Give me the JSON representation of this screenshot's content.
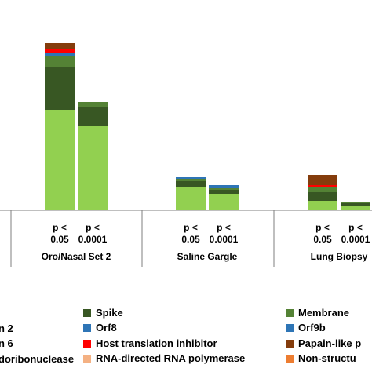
{
  "chart_data": {
    "type": "bar",
    "stacked": true,
    "groups": [
      {
        "label": "Oro/Nasal Set 2",
        "bars": [
          {
            "tick": [
              "p <",
              "0.05"
            ],
            "segments": {
              "base": 128,
              "Spike": 55,
              "Membrane": 14,
              "Orf8": 3,
              "Host translation inhibitor": 5,
              "Papain-like protease": 8
            }
          },
          {
            "tick": [
              "p <",
              "0.0001"
            ],
            "segments": {
              "base": 108,
              "Spike": 24,
              "Membrane": 6
            }
          }
        ]
      },
      {
        "label": "Saline Gargle",
        "bars": [
          {
            "tick": [
              "p <",
              "0.05"
            ],
            "segments": {
              "base": 30,
              "Spike": 8,
              "Membrane": 2,
              "Orf8": 3
            }
          },
          {
            "tick": [
              "p <",
              "0.0001"
            ],
            "segments": {
              "base": 21,
              "Spike": 5,
              "Membrane": 3,
              "Orf8": 3
            }
          }
        ]
      },
      {
        "label": "Lung Biopsy",
        "bars": [
          {
            "tick": [
              "p <",
              "0.05"
            ],
            "segments": {
              "base": 12,
              "Spike": 11,
              "Membrane": 7,
              "Host translation inhibitor": 2,
              "Papain-like protease": 13
            }
          },
          {
            "tick": [
              "p <",
              "0.0001"
            ],
            "segments": {
              "base": 6,
              "Spike": 3,
              "Membrane": 2
            }
          }
        ]
      }
    ],
    "colors": {
      "base": "#92d050",
      "Spike": "#385723",
      "Membrane": "#548235",
      "Orf8": "#2e75b6",
      "Orf9b": "#2e75b6",
      "Host translation inhibitor": "#ff0000",
      "Papain-like protease": "#843c0c",
      "RNA-directed RNA polymerase": "#f4b183",
      "Non-structural": "#ed7d31"
    },
    "legend": [
      {
        "label": "Spike",
        "color": "#385723"
      },
      {
        "label": "Membrane",
        "color": "#548235"
      },
      {
        "label": "Orf8",
        "color": "#2e75b6"
      },
      {
        "label": "Orf9b",
        "color": "#2e75b6"
      },
      {
        "label": "Host translation inhibitor",
        "color": "#ff0000"
      },
      {
        "label": "Papain-like p",
        "color": "#843c0c"
      },
      {
        "label": "RNA-directed RNA polymerase",
        "color": "#f4b183"
      },
      {
        "label": "Non-structu",
        "color": "#ed7d31"
      }
    ],
    "cut_labels": [
      "n 2",
      "n 6",
      "doribonuclease"
    ]
  }
}
